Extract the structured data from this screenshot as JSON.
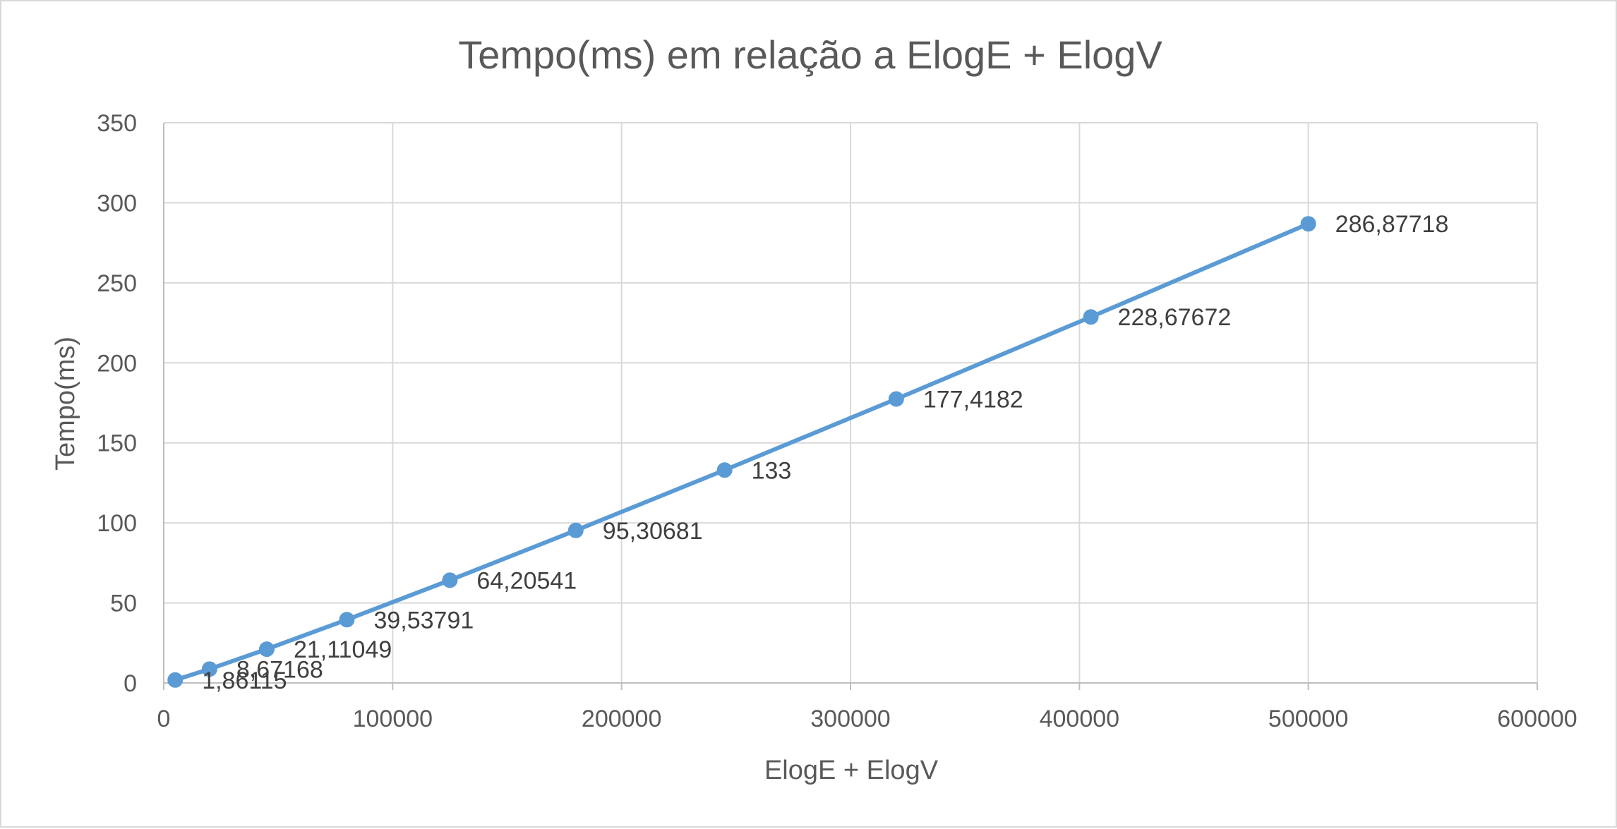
{
  "chart_data": {
    "type": "line",
    "title": "Tempo(ms) em relação a ElogE + ElogV",
    "xlabel": "ElogE + ElogV",
    "ylabel": "Tempo(ms)",
    "xlim": [
      0,
      600000
    ],
    "ylim": [
      0,
      350
    ],
    "x_ticks": [
      0,
      100000,
      200000,
      300000,
      400000,
      500000,
      600000
    ],
    "y_ticks": [
      0,
      50,
      100,
      150,
      200,
      250,
      300,
      350
    ],
    "x_tick_labels": [
      "0",
      "100000",
      "200000",
      "300000",
      "400000",
      "500000",
      "600000"
    ],
    "y_tick_labels": [
      "0",
      "50",
      "100",
      "150",
      "200",
      "250",
      "300",
      "350"
    ],
    "grid": true,
    "legend": "none",
    "series": [
      {
        "color": "#5b9bd5",
        "x": [
          5000,
          20000,
          45000,
          80000,
          125000,
          180000,
          245000,
          320000,
          405000,
          500000
        ],
        "y": [
          1.86115,
          8.67168,
          21.11049,
          39.53791,
          64.20541,
          95.30681,
          133,
          177.4182,
          228.67672,
          286.87718
        ],
        "labels": [
          "1,86115",
          "8,67168",
          "21,11049",
          "39,53791",
          "64,20541",
          "95,30681",
          "133",
          "177,4182",
          "228,67672",
          "286,87718"
        ]
      }
    ]
  }
}
